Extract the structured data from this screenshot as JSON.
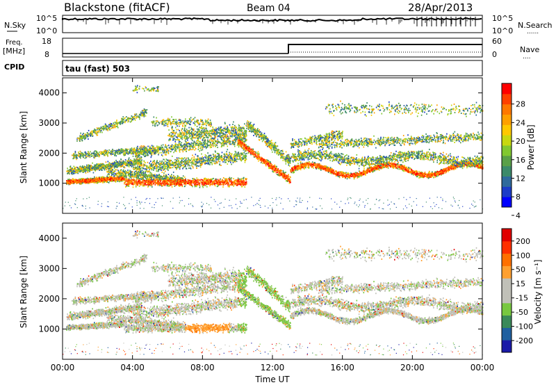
{
  "header": {
    "station": "Blackstone (fitACF)",
    "beam": "Beam 04",
    "date": "28/Apr/2013"
  },
  "nsky_panel": {
    "left_label": "N.Sky",
    "right_label": "N.Search",
    "left_ticks": [
      "10^5",
      "10^0"
    ],
    "right_ticks": [
      "10^5",
      "10^0"
    ]
  },
  "freq_panel": {
    "left_label_1": "Freq.",
    "left_label_2": "[MHz]",
    "right_label": "Nave",
    "left_ticks": [
      "18",
      "8"
    ],
    "right_ticks": [
      "60",
      "0"
    ],
    "cpid_label": "CPID",
    "cpid_value": "tau (fast) 503"
  },
  "chart_data": [
    {
      "type": "heatmap",
      "title": "",
      "ylabel": "Slant Range [km]",
      "xlabel": "",
      "ylim": [
        0,
        4500
      ],
      "yticks": [
        "1000",
        "2000",
        "3000",
        "4000"
      ],
      "colorbar": {
        "label": "Power [dB]",
        "ticks": [
          "28",
          "24",
          "20",
          "16",
          "12",
          "8",
          "4"
        ],
        "colors": [
          "#0000ff",
          "#1c3cc8",
          "#2f6a9c",
          "#3c8a6a",
          "#5aa048",
          "#82c830",
          "#c8d810",
          "#ffc800",
          "#ffa000",
          "#ff7800",
          "#ff4000",
          "#ff0000"
        ]
      }
    },
    {
      "type": "heatmap",
      "title": "",
      "ylabel": "Slant Range [km]",
      "xlabel": "Time UT",
      "ylim": [
        0,
        4500
      ],
      "yticks": [
        "1000",
        "2000",
        "3000",
        "4000"
      ],
      "xticks": [
        "00:00",
        "04:00",
        "08:00",
        "12:00",
        "16:00",
        "20:00",
        "00:00"
      ],
      "colorbar": {
        "label": "Velocity [m s⁻¹]",
        "ticks": [
          "200",
          "100",
          "50",
          "15",
          "-15",
          "-50",
          "-100",
          "-200"
        ],
        "colors": [
          "#1a1aa8",
          "#2060a0",
          "#3a8a5a",
          "#78c840",
          "#c0c0b8",
          "#c0c0b8",
          "#ffa030",
          "#ff7000",
          "#ff3000",
          "#e00000"
        ]
      }
    }
  ]
}
